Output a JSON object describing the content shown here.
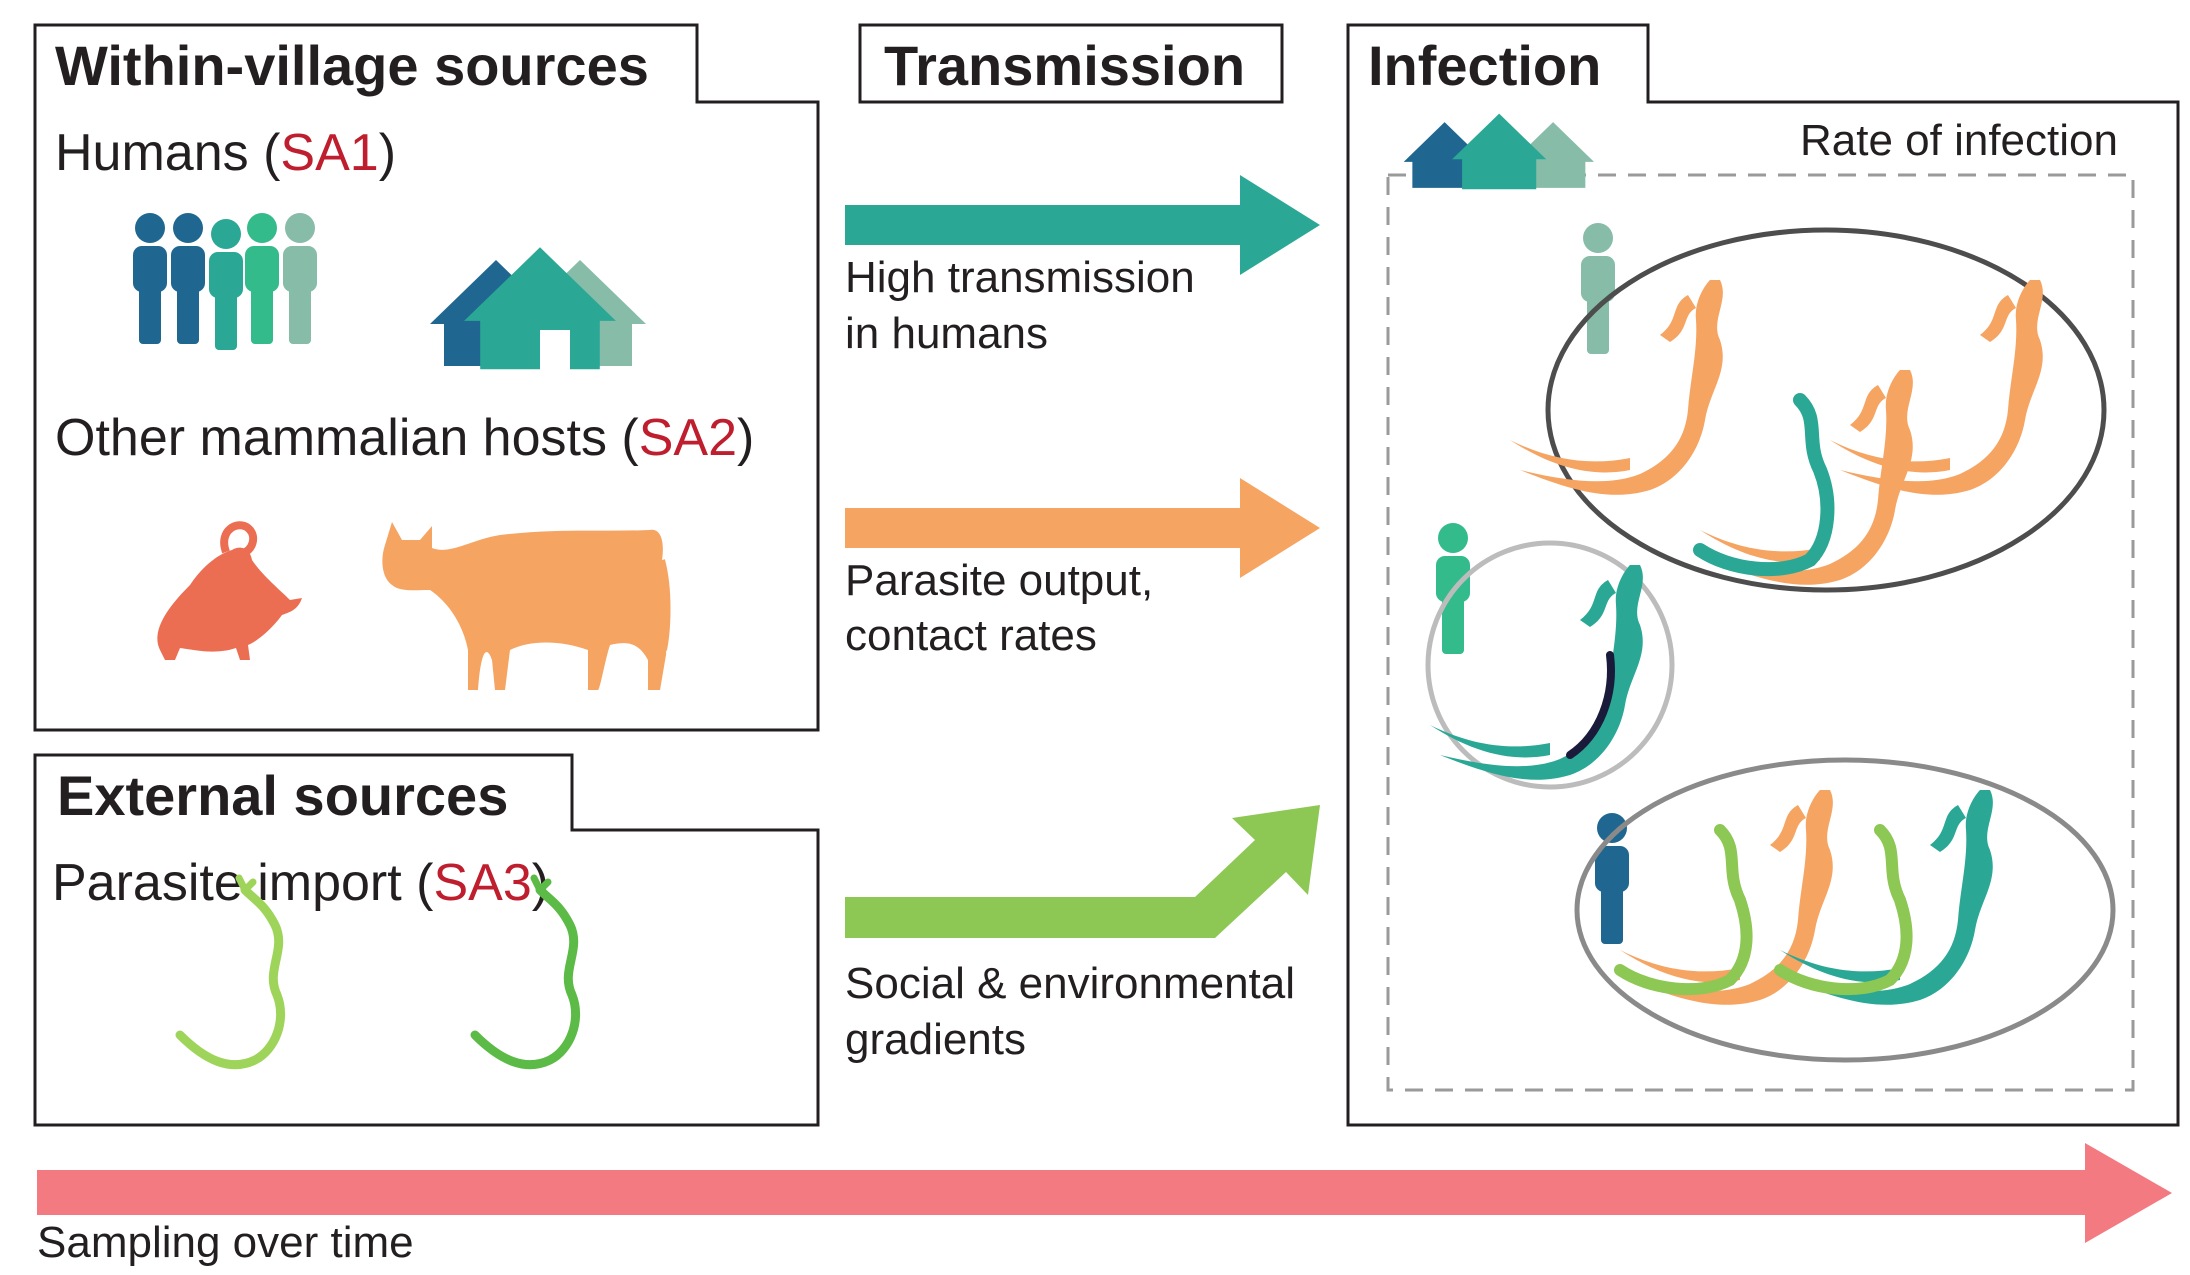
{
  "within_village": {
    "title": "Within-village sources",
    "humans": {
      "prefix": "Humans (",
      "code": "SA1",
      "suffix": ")"
    },
    "mammals": {
      "prefix": "Other mammalian hosts (",
      "code": "SA2",
      "suffix": ")"
    }
  },
  "external": {
    "title": "External sources",
    "import": {
      "prefix": "Parasite import (",
      "code": "SA3",
      "suffix": ")"
    }
  },
  "transmission": {
    "title": "Transmission",
    "arrows": [
      {
        "line1": "High transmission",
        "line2": "in humans",
        "color": "#2aa895"
      },
      {
        "line1": "Parasite output,",
        "line2": "contact rates",
        "color": "#f5a462"
      },
      {
        "line1": "Social & environmental",
        "line2": "gradients",
        "color": "#8dc754"
      }
    ]
  },
  "infection": {
    "title": "Infection",
    "rate_label": "Rate of infection"
  },
  "timeline": {
    "label": "Sampling over time",
    "color": "#f27a80"
  },
  "colors": {
    "code_red": "#be1e2d",
    "dark_blue": "#1f6791",
    "teal": "#2aa895",
    "green_teal": "#33bb8b",
    "sage": "#86bca8",
    "orange": "#f5a462",
    "coral": "#ec6e52",
    "light_green": "#9fd45a",
    "green": "#5bbb46",
    "navy": "#1a1a3a"
  }
}
